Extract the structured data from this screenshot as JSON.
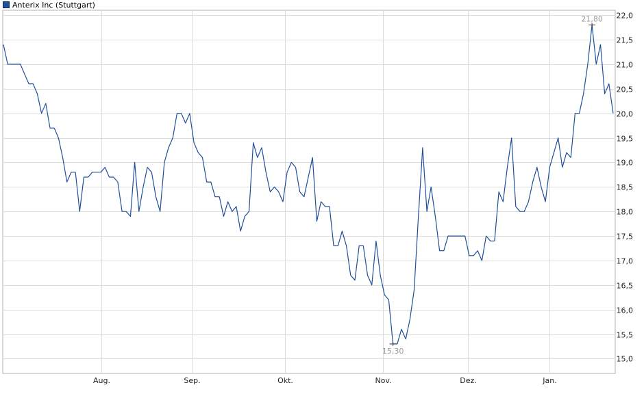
{
  "chart_data": {
    "type": "line",
    "series": [
      {
        "name": "Anterix Inc (Stuttgart)",
        "color": "#1f4e9a",
        "values": [
          21.4,
          21.0,
          21.0,
          21.0,
          21.0,
          20.8,
          20.6,
          20.6,
          20.4,
          20.0,
          20.2,
          19.7,
          19.7,
          19.5,
          19.1,
          18.6,
          18.8,
          18.8,
          18.0,
          18.7,
          18.7,
          18.8,
          18.8,
          18.8,
          18.9,
          18.7,
          18.7,
          18.6,
          18.0,
          18.0,
          17.9,
          19.0,
          18.0,
          18.5,
          18.9,
          18.8,
          18.3,
          18.0,
          19.0,
          19.3,
          19.5,
          20.0,
          20.0,
          19.8,
          20.0,
          19.4,
          19.2,
          19.1,
          18.6,
          18.6,
          18.3,
          18.3,
          17.9,
          18.2,
          18.0,
          18.1,
          17.6,
          17.9,
          18.0,
          19.4,
          19.1,
          19.3,
          18.8,
          18.4,
          18.5,
          18.4,
          18.2,
          18.8,
          19.0,
          18.9,
          18.4,
          18.3,
          18.7,
          19.1,
          17.8,
          18.2,
          18.1,
          18.1,
          17.3,
          17.3,
          17.6,
          17.3,
          16.7,
          16.6,
          17.3,
          17.3,
          16.7,
          16.5,
          17.4,
          16.7,
          16.3,
          16.2,
          15.3,
          15.3,
          15.6,
          15.4,
          15.8,
          16.4,
          17.9,
          19.3,
          18.0,
          18.5,
          17.9,
          17.2,
          17.2,
          17.5,
          17.5,
          17.5,
          17.5,
          17.5,
          17.1,
          17.1,
          17.2,
          17.0,
          17.5,
          17.4,
          17.4,
          18.4,
          18.2,
          18.9,
          19.5,
          18.1,
          18.0,
          18.0,
          18.2,
          18.6,
          18.9,
          18.5,
          18.2,
          18.9,
          19.2,
          19.5,
          18.9,
          19.2,
          19.1,
          20.0,
          20.0,
          20.4,
          21.0,
          21.8,
          21.0,
          21.4,
          20.4,
          20.6,
          20.0
        ]
      }
    ],
    "x_labels": [
      "Aug.",
      "Sep.",
      "Okt.",
      "Nov.",
      "Dez.",
      "Jan."
    ],
    "y_ticks": [
      "15,0",
      "15,5",
      "16,0",
      "16,5",
      "17,0",
      "17,5",
      "18,0",
      "18,5",
      "19,0",
      "19,5",
      "20,0",
      "20,5",
      "21,0",
      "21,5",
      "22,0"
    ],
    "ylim": [
      14.7,
      22.1
    ],
    "max_label": "21,80",
    "min_label": "15,30",
    "legend_position": "top-left",
    "grid": true,
    "title": "",
    "xlabel": "",
    "ylabel": ""
  }
}
